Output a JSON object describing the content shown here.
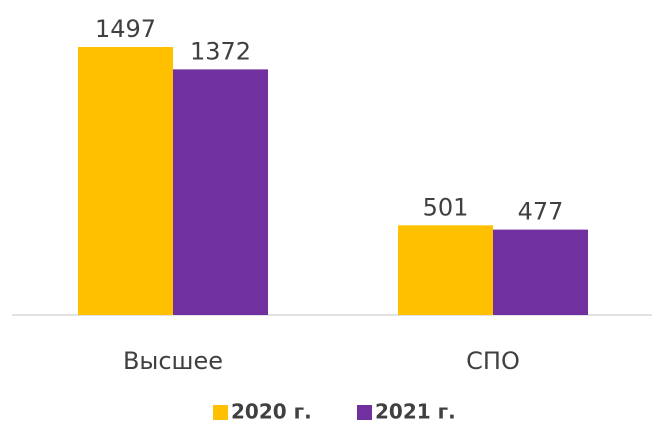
{
  "chart_data": {
    "type": "bar",
    "categories": [
      "Высшее",
      "СПО"
    ],
    "series": [
      {
        "name": "2020 г.",
        "color": "#ffc000",
        "values": [
          1497,
          501
        ]
      },
      {
        "name": "2021 г.",
        "color": "#7030a0",
        "values": [
          1372,
          477
        ]
      }
    ]
  }
}
